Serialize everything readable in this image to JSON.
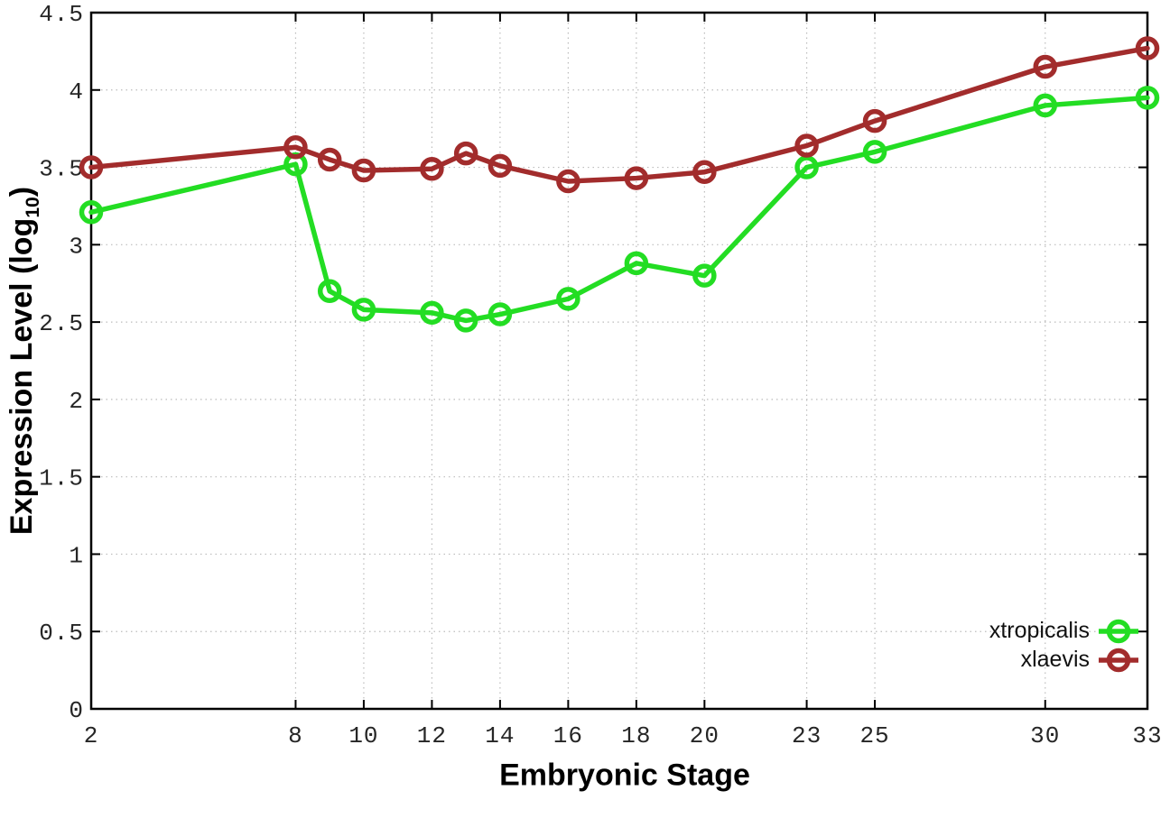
{
  "chart_data": {
    "type": "line",
    "title": "",
    "xlabel": "Embryonic Stage",
    "ylabel": "Expression Level (log10)",
    "marker": "open-circle",
    "grid": true,
    "legend_position": "bottom-right-inside",
    "xlim": [
      2,
      33
    ],
    "ylim": [
      0,
      4.5
    ],
    "x": [
      2,
      8,
      9,
      10,
      12,
      13,
      14,
      16,
      18,
      20,
      23,
      25,
      30,
      33
    ],
    "series": [
      {
        "name": "xtropicalis",
        "color": "#23dd23",
        "values": [
          3.21,
          3.52,
          2.7,
          2.58,
          2.56,
          2.51,
          2.55,
          2.65,
          2.88,
          2.8,
          3.5,
          3.6,
          3.9,
          3.95
        ]
      },
      {
        "name": "xlaevis",
        "color": "#a22c2c",
        "values": [
          3.5,
          3.63,
          3.55,
          3.48,
          3.49,
          3.59,
          3.51,
          3.41,
          3.43,
          3.47,
          3.64,
          3.8,
          4.15,
          4.27
        ]
      }
    ],
    "xticks": {
      "values": [
        2,
        8,
        10,
        12,
        14,
        16,
        18,
        20,
        23,
        25,
        30,
        33
      ],
      "labels": [
        "2",
        "8",
        "10",
        "12",
        "14",
        "16",
        "18",
        "20",
        "23",
        "25",
        "30",
        "33"
      ]
    },
    "yticks": {
      "values": [
        0,
        0.5,
        1,
        1.5,
        2,
        2.5,
        3,
        3.5,
        4,
        4.5
      ],
      "labels": [
        "0",
        "0.5",
        "1",
        "1.5",
        "2",
        "2.5",
        "3",
        "3.5",
        "4",
        "4.5"
      ]
    }
  },
  "axes": {
    "xlabel": "Embryonic Stage",
    "ylabel_main": "Expression Level (log",
    "ylabel_sub": "10",
    "ylabel_close": ")"
  },
  "legend": {
    "entries": [
      {
        "label": "xtropicalis"
      },
      {
        "label": "xlaevis"
      }
    ]
  }
}
